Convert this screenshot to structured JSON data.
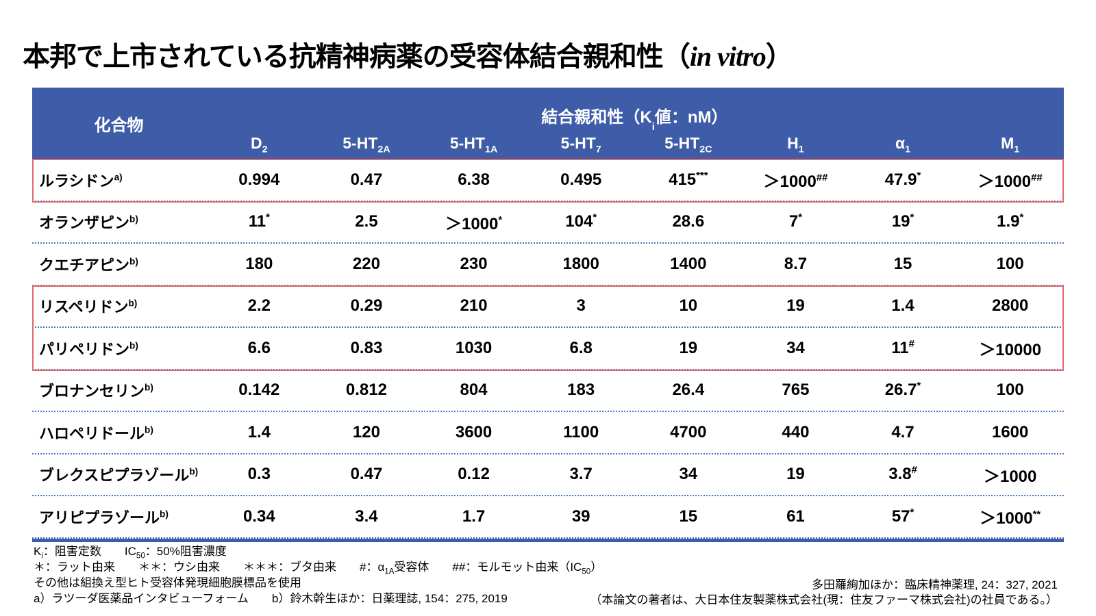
{
  "colors": {
    "header_blue": "#3E5CA7",
    "separator_blue": "#4472C4",
    "highlight_red": "#E06A6A"
  },
  "title": {
    "segments": [
      {
        "t": "本邦で上市されている抗精神病薬の受容体結合親和性（"
      },
      {
        "i": "in vitro"
      },
      {
        "t": "）"
      }
    ]
  },
  "table": {
    "compound_header": "化合物",
    "affinity_header_segments": [
      {
        "t": "結合親和性（K"
      },
      {
        "sub": "i"
      },
      {
        "t": "値：nM）"
      }
    ],
    "columns": [
      {
        "segments": [
          {
            "t": "D"
          },
          {
            "sub": "2"
          }
        ]
      },
      {
        "segments": [
          {
            "t": "5-HT"
          },
          {
            "sub": "2A"
          }
        ]
      },
      {
        "segments": [
          {
            "t": "5-HT"
          },
          {
            "sub": "1A"
          }
        ]
      },
      {
        "segments": [
          {
            "t": "5-HT"
          },
          {
            "sub": "7"
          }
        ]
      },
      {
        "segments": [
          {
            "t": "5-HT"
          },
          {
            "sub": "2C"
          }
        ]
      },
      {
        "segments": [
          {
            "t": "H"
          },
          {
            "sub": "1"
          }
        ]
      },
      {
        "segments": [
          {
            "t": "α"
          },
          {
            "sub": "1"
          }
        ]
      },
      {
        "segments": [
          {
            "t": "M"
          },
          {
            "sub": "1"
          }
        ]
      }
    ],
    "rows": [
      {
        "name": "ルラシドン",
        "ref": "a)",
        "values": [
          {
            "v": "0.994",
            "s": ""
          },
          {
            "v": "0.47",
            "s": ""
          },
          {
            "v": "6.38",
            "s": ""
          },
          {
            "v": "0.495",
            "s": ""
          },
          {
            "v": "415",
            "s": "***"
          },
          {
            "v": "＞1000",
            "s": "##"
          },
          {
            "v": "47.9",
            "s": "*"
          },
          {
            "v": "＞1000",
            "s": "##"
          }
        ]
      },
      {
        "name": "オランザピン",
        "ref": "b)",
        "values": [
          {
            "v": "11",
            "s": "*"
          },
          {
            "v": "2.5",
            "s": ""
          },
          {
            "v": "＞1000",
            "s": "*"
          },
          {
            "v": "104",
            "s": "*"
          },
          {
            "v": "28.6",
            "s": ""
          },
          {
            "v": "7",
            "s": "*"
          },
          {
            "v": "19",
            "s": "*"
          },
          {
            "v": "1.9",
            "s": "*"
          }
        ]
      },
      {
        "name": "クエチアピン",
        "ref": "b)",
        "values": [
          {
            "v": "180",
            "s": ""
          },
          {
            "v": "220",
            "s": ""
          },
          {
            "v": "230",
            "s": ""
          },
          {
            "v": "1800",
            "s": ""
          },
          {
            "v": "1400",
            "s": ""
          },
          {
            "v": "8.7",
            "s": ""
          },
          {
            "v": "15",
            "s": ""
          },
          {
            "v": "100",
            "s": ""
          }
        ]
      },
      {
        "name": "リスペリドン",
        "ref": "b)",
        "values": [
          {
            "v": "2.2",
            "s": ""
          },
          {
            "v": "0.29",
            "s": ""
          },
          {
            "v": "210",
            "s": ""
          },
          {
            "v": "3",
            "s": ""
          },
          {
            "v": "10",
            "s": ""
          },
          {
            "v": "19",
            "s": ""
          },
          {
            "v": "1.4",
            "s": ""
          },
          {
            "v": "2800",
            "s": ""
          }
        ]
      },
      {
        "name": "パリペリドン",
        "ref": "b)",
        "values": [
          {
            "v": "6.6",
            "s": ""
          },
          {
            "v": "0.83",
            "s": ""
          },
          {
            "v": "1030",
            "s": ""
          },
          {
            "v": "6.8",
            "s": ""
          },
          {
            "v": "19",
            "s": ""
          },
          {
            "v": "34",
            "s": ""
          },
          {
            "v": "11",
            "s": "#"
          },
          {
            "v": "＞10000",
            "s": ""
          }
        ]
      },
      {
        "name": "ブロナンセリン",
        "ref": "b)",
        "values": [
          {
            "v": "0.142",
            "s": ""
          },
          {
            "v": "0.812",
            "s": ""
          },
          {
            "v": "804",
            "s": ""
          },
          {
            "v": "183",
            "s": ""
          },
          {
            "v": "26.4",
            "s": ""
          },
          {
            "v": "765",
            "s": ""
          },
          {
            "v": "26.7",
            "s": "*"
          },
          {
            "v": "100",
            "s": ""
          }
        ]
      },
      {
        "name": "ハロペリドール",
        "ref": "b)",
        "values": [
          {
            "v": "1.4",
            "s": ""
          },
          {
            "v": "120",
            "s": ""
          },
          {
            "v": "3600",
            "s": ""
          },
          {
            "v": "1100",
            "s": ""
          },
          {
            "v": "4700",
            "s": ""
          },
          {
            "v": "440",
            "s": ""
          },
          {
            "v": "4.7",
            "s": ""
          },
          {
            "v": "1600",
            "s": ""
          }
        ]
      },
      {
        "name": "ブレクスピプラゾール",
        "ref": "b)",
        "values": [
          {
            "v": "0.3",
            "s": ""
          },
          {
            "v": "0.47",
            "s": ""
          },
          {
            "v": "0.12",
            "s": ""
          },
          {
            "v": "3.7",
            "s": ""
          },
          {
            "v": "34",
            "s": ""
          },
          {
            "v": "19",
            "s": ""
          },
          {
            "v": "3.8",
            "s": "#"
          },
          {
            "v": "＞1000",
            "s": ""
          }
        ]
      },
      {
        "name": "アリピプラゾール",
        "ref": "b)",
        "values": [
          {
            "v": "0.34",
            "s": ""
          },
          {
            "v": "3.4",
            "s": ""
          },
          {
            "v": "1.7",
            "s": ""
          },
          {
            "v": "39",
            "s": ""
          },
          {
            "v": "15",
            "s": ""
          },
          {
            "v": "61",
            "s": ""
          },
          {
            "v": "57",
            "s": "*"
          },
          {
            "v": "＞1000",
            "s": "**"
          }
        ]
      }
    ],
    "highlight_groups": [
      [
        0
      ],
      [
        3,
        4
      ]
    ]
  },
  "footnotes": {
    "lines": [
      {
        "segments": [
          {
            "t": "K"
          },
          {
            "sub": "i"
          },
          {
            "t": "：阻害定数　　IC"
          },
          {
            "sub": "50"
          },
          {
            "t": "：50%阻害濃度"
          }
        ]
      },
      {
        "segments": [
          {
            "t": "＊：ラット由来　　＊＊：ウシ由来　　＊＊＊：ブタ由来　　#：α"
          },
          {
            "sub": "1A"
          },
          {
            "t": "受容体　　##：モルモット由来（IC"
          },
          {
            "sub": "50"
          },
          {
            "t": "）"
          }
        ]
      },
      {
        "segments": [
          {
            "t": "その他は組換え型ヒト受容体発現細胞膜標品を使用"
          }
        ]
      },
      {
        "segments": [
          {
            "t": "a）ラツーダ医薬品インタビューフォーム　　b）鈴木幹生ほか：日薬理誌, 154：275, 2019"
          }
        ]
      }
    ]
  },
  "citations": {
    "lines": [
      "多田羅絢加ほか：臨床精神薬理, 24：327, 2021",
      "（本論文の著者は、大日本住友製薬株式会社(現：住友ファーマ株式会社)の社員である。）"
    ]
  }
}
